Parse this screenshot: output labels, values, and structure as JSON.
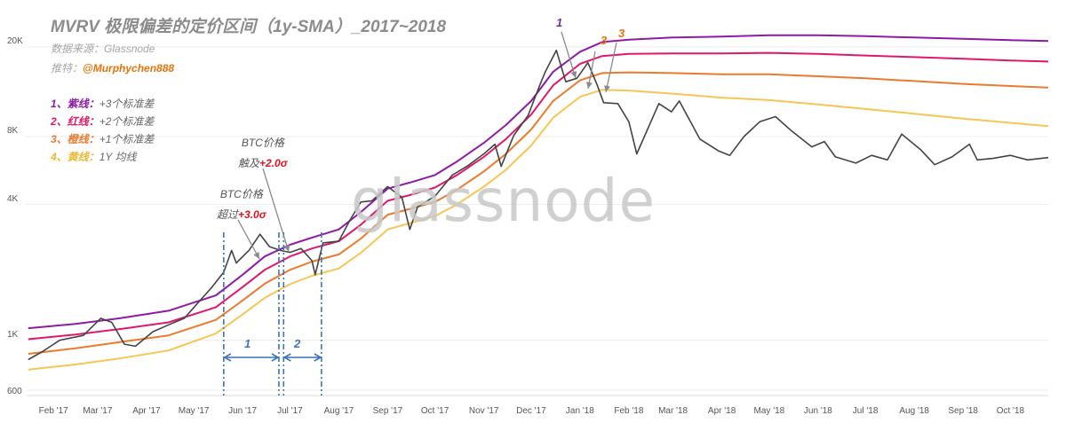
{
  "title": "MVRV 极限偏差的定价区间（1y-SMA）_2017~2018",
  "source": {
    "label": "数据来源：",
    "value": "Glassnode"
  },
  "author": {
    "label": "推特：",
    "value": "@Murphychen888"
  },
  "legend": [
    {
      "name": "1、紫线：",
      "desc": "+3个标准差",
      "color": "#8e1ba8"
    },
    {
      "name": "2、红线：",
      "desc": "+2个标准差",
      "color": "#e0186c"
    },
    {
      "name": "3、橙线：",
      "desc": "+1个标准差",
      "color": "#ec7a2c"
    },
    {
      "name": "4、黄线：",
      "desc": "1Y 均线",
      "color": "#f7c652"
    }
  ],
  "watermark": "glassnode",
  "annotations": {
    "a1": {
      "line1": "BTC价格",
      "prefix": "超过",
      "value": "+3.0σ"
    },
    "a2": {
      "line1": "BTC价格",
      "prefix": "触及",
      "value": "+2.0σ"
    },
    "peak_marks": [
      {
        "text": "1",
        "color": "#7030a0"
      },
      {
        "text": "3",
        "color": "#e8730a"
      },
      {
        "text": "3",
        "color": "#e8730a"
      }
    ],
    "periods": [
      {
        "text": "1"
      },
      {
        "text": "2"
      }
    ]
  },
  "colors": {
    "price": "#444444",
    "period": "#3b74b8",
    "grid": "#ececec"
  },
  "chart_data": {
    "type": "line",
    "y_scale": "log",
    "ylim": [
      600,
      30000
    ],
    "x_range": [
      "2017-01-15",
      "2018-10-25"
    ],
    "y_ticks": [
      {
        "value": 600,
        "label": "600"
      },
      {
        "value": 1000,
        "label": "1K"
      },
      {
        "value": 4000,
        "label": "4K"
      },
      {
        "value": 8000,
        "label": "8K"
      },
      {
        "value": 20000,
        "label": "20K"
      }
    ],
    "x_ticks": [
      {
        "date": "2017-02-01",
        "label": "Feb '17"
      },
      {
        "date": "2017-03-01",
        "label": "Mar '17"
      },
      {
        "date": "2017-04-01",
        "label": "Apr '17"
      },
      {
        "date": "2017-05-01",
        "label": "May '17"
      },
      {
        "date": "2017-06-01",
        "label": "Jun '17"
      },
      {
        "date": "2017-07-01",
        "label": "Jul '17"
      },
      {
        "date": "2017-08-01",
        "label": "Aug '17"
      },
      {
        "date": "2017-09-01",
        "label": "Sep '17"
      },
      {
        "date": "2017-10-01",
        "label": "Oct '17"
      },
      {
        "date": "2017-11-01",
        "label": "Nov '17"
      },
      {
        "date": "2017-12-01",
        "label": "Dec '17"
      },
      {
        "date": "2018-01-01",
        "label": "Jan '18"
      },
      {
        "date": "2018-02-01",
        "label": "Feb '18"
      },
      {
        "date": "2018-03-01",
        "label": "Mar '18"
      },
      {
        "date": "2018-04-01",
        "label": "Apr '18"
      },
      {
        "date": "2018-05-01",
        "label": "May '18"
      },
      {
        "date": "2018-06-01",
        "label": "Jun '18"
      },
      {
        "date": "2018-07-01",
        "label": "Jul '18"
      },
      {
        "date": "2018-08-01",
        "label": "Aug '18"
      },
      {
        "date": "2018-09-01",
        "label": "Sep '18"
      },
      {
        "date": "2018-10-01",
        "label": "Oct '18"
      }
    ],
    "series": [
      {
        "key": "sd3",
        "color": "#8e1ba8",
        "points": [
          [
            "2017-01-16",
            1130
          ],
          [
            "2017-02-15",
            1180
          ],
          [
            "2017-03-15",
            1250
          ],
          [
            "2017-04-15",
            1350
          ],
          [
            "2017-05-15",
            1580
          ],
          [
            "2017-06-01",
            1950
          ],
          [
            "2017-06-15",
            2350
          ],
          [
            "2017-07-01",
            2650
          ],
          [
            "2017-07-15",
            2850
          ],
          [
            "2017-08-01",
            3100
          ],
          [
            "2017-08-15",
            3700
          ],
          [
            "2017-09-01",
            4700
          ],
          [
            "2017-09-15",
            5000
          ],
          [
            "2017-10-01",
            5400
          ],
          [
            "2017-10-15",
            6200
          ],
          [
            "2017-11-01",
            7500
          ],
          [
            "2017-11-15",
            9000
          ],
          [
            "2017-12-01",
            11500
          ],
          [
            "2017-12-15",
            15500
          ],
          [
            "2018-01-01",
            19000
          ],
          [
            "2018-01-15",
            21000
          ],
          [
            "2018-02-01",
            21500
          ],
          [
            "2018-03-01",
            22000
          ],
          [
            "2018-04-01",
            22200
          ],
          [
            "2018-05-01",
            22500
          ],
          [
            "2018-06-01",
            22500
          ],
          [
            "2018-07-01",
            22300
          ],
          [
            "2018-08-01",
            22000
          ],
          [
            "2018-09-01",
            21700
          ],
          [
            "2018-10-01",
            21400
          ],
          [
            "2018-10-25",
            21200
          ]
        ]
      },
      {
        "key": "sd2",
        "color": "#e0186c",
        "points": [
          [
            "2017-01-16",
            1010
          ],
          [
            "2017-02-15",
            1060
          ],
          [
            "2017-03-15",
            1120
          ],
          [
            "2017-04-15",
            1200
          ],
          [
            "2017-05-15",
            1400
          ],
          [
            "2017-06-01",
            1720
          ],
          [
            "2017-06-15",
            2050
          ],
          [
            "2017-07-01",
            2350
          ],
          [
            "2017-07-15",
            2550
          ],
          [
            "2017-08-01",
            2750
          ],
          [
            "2017-08-15",
            3250
          ],
          [
            "2017-09-01",
            4150
          ],
          [
            "2017-09-15",
            4400
          ],
          [
            "2017-10-01",
            4750
          ],
          [
            "2017-10-15",
            5400
          ],
          [
            "2017-11-01",
            6500
          ],
          [
            "2017-11-15",
            7800
          ],
          [
            "2017-12-01",
            10000
          ],
          [
            "2017-12-15",
            13500
          ],
          [
            "2018-01-01",
            16800
          ],
          [
            "2018-01-15",
            18200
          ],
          [
            "2018-02-01",
            18600
          ],
          [
            "2018-03-01",
            18700
          ],
          [
            "2018-04-01",
            18700
          ],
          [
            "2018-05-01",
            18800
          ],
          [
            "2018-06-01",
            18600
          ],
          [
            "2018-07-01",
            18300
          ],
          [
            "2018-08-01",
            18000
          ],
          [
            "2018-09-01",
            17700
          ],
          [
            "2018-10-01",
            17400
          ],
          [
            "2018-10-25",
            17200
          ]
        ]
      },
      {
        "key": "sd1",
        "color": "#ec7a2c",
        "points": [
          [
            "2017-01-16",
            870
          ],
          [
            "2017-02-15",
            920
          ],
          [
            "2017-03-15",
            980
          ],
          [
            "2017-04-15",
            1050
          ],
          [
            "2017-05-15",
            1230
          ],
          [
            "2017-06-01",
            1500
          ],
          [
            "2017-06-15",
            1780
          ],
          [
            "2017-07-01",
            2050
          ],
          [
            "2017-07-15",
            2230
          ],
          [
            "2017-08-01",
            2400
          ],
          [
            "2017-08-15",
            2820
          ],
          [
            "2017-09-01",
            3600
          ],
          [
            "2017-09-15",
            3820
          ],
          [
            "2017-10-01",
            4100
          ],
          [
            "2017-10-15",
            4650
          ],
          [
            "2017-11-01",
            5600
          ],
          [
            "2017-11-15",
            6700
          ],
          [
            "2017-12-01",
            8600
          ],
          [
            "2017-12-15",
            11500
          ],
          [
            "2018-01-01",
            14200
          ],
          [
            "2018-01-15",
            15300
          ],
          [
            "2018-02-01",
            15400
          ],
          [
            "2018-03-01",
            15300
          ],
          [
            "2018-04-01",
            15100
          ],
          [
            "2018-05-01",
            15100
          ],
          [
            "2018-06-01",
            14800
          ],
          [
            "2018-07-01",
            14500
          ],
          [
            "2018-08-01",
            14100
          ],
          [
            "2018-09-01",
            13700
          ],
          [
            "2018-10-01",
            13400
          ],
          [
            "2018-10-25",
            13200
          ]
        ]
      },
      {
        "key": "sma",
        "color": "#f7c652",
        "points": [
          [
            "2017-01-16",
            740
          ],
          [
            "2017-02-15",
            780
          ],
          [
            "2017-03-15",
            830
          ],
          [
            "2017-04-15",
            900
          ],
          [
            "2017-05-15",
            1070
          ],
          [
            "2017-06-01",
            1300
          ],
          [
            "2017-06-15",
            1540
          ],
          [
            "2017-07-01",
            1770
          ],
          [
            "2017-07-15",
            1930
          ],
          [
            "2017-08-01",
            2080
          ],
          [
            "2017-08-15",
            2440
          ],
          [
            "2017-09-01",
            3100
          ],
          [
            "2017-09-15",
            3300
          ],
          [
            "2017-10-01",
            3550
          ],
          [
            "2017-10-15",
            4000
          ],
          [
            "2017-11-01",
            4800
          ],
          [
            "2017-11-15",
            5700
          ],
          [
            "2017-12-01",
            7300
          ],
          [
            "2017-12-15",
            9700
          ],
          [
            "2018-01-01",
            12000
          ],
          [
            "2018-01-15",
            12900
          ],
          [
            "2018-02-01",
            12800
          ],
          [
            "2018-03-01",
            12400
          ],
          [
            "2018-04-01",
            11900
          ],
          [
            "2018-05-01",
            11600
          ],
          [
            "2018-06-01",
            11100
          ],
          [
            "2018-07-01",
            10600
          ],
          [
            "2018-08-01",
            10100
          ],
          [
            "2018-09-01",
            9600
          ],
          [
            "2018-10-01",
            9200
          ],
          [
            "2018-10-25",
            8900
          ]
        ]
      },
      {
        "key": "price",
        "color": "#444444",
        "points": [
          [
            "2017-01-16",
            820
          ],
          [
            "2017-01-25",
            890
          ],
          [
            "2017-02-05",
            1000
          ],
          [
            "2017-02-20",
            1050
          ],
          [
            "2017-03-03",
            1250
          ],
          [
            "2017-03-10",
            1200
          ],
          [
            "2017-03-18",
            960
          ],
          [
            "2017-03-25",
            940
          ],
          [
            "2017-04-05",
            1090
          ],
          [
            "2017-04-15",
            1170
          ],
          [
            "2017-04-25",
            1250
          ],
          [
            "2017-05-05",
            1500
          ],
          [
            "2017-05-12",
            1700
          ],
          [
            "2017-05-20",
            2000
          ],
          [
            "2017-05-25",
            2500
          ],
          [
            "2017-05-28",
            2200
          ],
          [
            "2017-06-05",
            2500
          ],
          [
            "2017-06-12",
            2950
          ],
          [
            "2017-06-18",
            2600
          ],
          [
            "2017-06-25",
            2500
          ],
          [
            "2017-07-01",
            2450
          ],
          [
            "2017-07-08",
            2550
          ],
          [
            "2017-07-15",
            2250
          ],
          [
            "2017-07-17",
            1950
          ],
          [
            "2017-07-22",
            2700
          ],
          [
            "2017-08-01",
            2750
          ],
          [
            "2017-08-08",
            3400
          ],
          [
            "2017-08-15",
            4100
          ],
          [
            "2017-08-22",
            4150
          ],
          [
            "2017-09-01",
            4800
          ],
          [
            "2017-09-10",
            4300
          ],
          [
            "2017-09-15",
            3100
          ],
          [
            "2017-09-20",
            3900
          ],
          [
            "2017-10-01",
            4350
          ],
          [
            "2017-10-12",
            5400
          ],
          [
            "2017-10-22",
            5950
          ],
          [
            "2017-11-01",
            6700
          ],
          [
            "2017-11-08",
            7400
          ],
          [
            "2017-11-12",
            5900
          ],
          [
            "2017-11-20",
            8100
          ],
          [
            "2017-11-29",
            9900
          ],
          [
            "2017-12-07",
            13800
          ],
          [
            "2017-12-10",
            15500
          ],
          [
            "2017-12-17",
            19300
          ],
          [
            "2017-12-23",
            14000
          ],
          [
            "2017-12-30",
            14500
          ],
          [
            "2018-01-06",
            17000
          ],
          [
            "2018-01-12",
            13500
          ],
          [
            "2018-01-16",
            11300
          ],
          [
            "2018-01-25",
            11200
          ],
          [
            "2018-02-01",
            9300
          ],
          [
            "2018-02-06",
            6700
          ],
          [
            "2018-02-20",
            11200
          ],
          [
            "2018-02-28",
            10300
          ],
          [
            "2018-03-05",
            11500
          ],
          [
            "2018-03-18",
            7800
          ],
          [
            "2018-03-30",
            6900
          ],
          [
            "2018-04-06",
            6600
          ],
          [
            "2018-04-15",
            8000
          ],
          [
            "2018-04-25",
            9300
          ],
          [
            "2018-05-05",
            9800
          ],
          [
            "2018-05-15",
            8500
          ],
          [
            "2018-05-28",
            7200
          ],
          [
            "2018-06-05",
            7600
          ],
          [
            "2018-06-12",
            6500
          ],
          [
            "2018-06-25",
            6100
          ],
          [
            "2018-07-05",
            6600
          ],
          [
            "2018-07-15",
            6300
          ],
          [
            "2018-07-24",
            8200
          ],
          [
            "2018-08-05",
            7000
          ],
          [
            "2018-08-14",
            6000
          ],
          [
            "2018-08-25",
            6500
          ],
          [
            "2018-09-05",
            7400
          ],
          [
            "2018-09-10",
            6300
          ],
          [
            "2018-09-20",
            6400
          ],
          [
            "2018-10-01",
            6600
          ],
          [
            "2018-10-12",
            6300
          ],
          [
            "2018-10-25",
            6450
          ]
        ]
      }
    ]
  }
}
